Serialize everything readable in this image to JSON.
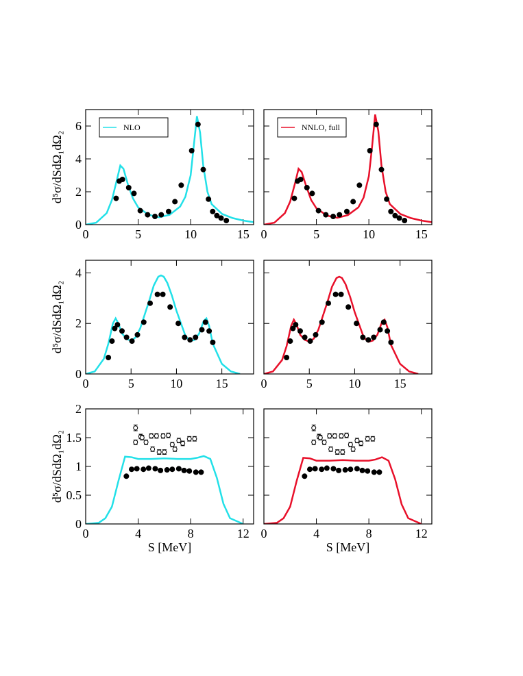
{
  "chart_data": [
    {
      "type": "line",
      "xlim": [
        0,
        16
      ],
      "xticks": [
        0,
        5,
        10,
        15
      ],
      "ylim": [
        0,
        7
      ],
      "yticks": [
        0,
        2,
        4,
        6
      ],
      "ylabel": "d⁵σ/dSdΩ₁dΩ₂",
      "show_ytick_labels": true,
      "legend": "upper left",
      "series": [
        {
          "name": "NLO",
          "color": "#22e0e8",
          "mode": "line",
          "x": [
            0,
            1,
            2,
            2.5,
            3,
            3.3,
            3.6,
            4,
            4.5,
            5,
            6,
            7,
            8,
            9,
            9.5,
            10,
            10.3,
            10.6,
            10.9,
            11.2,
            11.6,
            12,
            13,
            14,
            15,
            16
          ],
          "values": [
            0,
            0.12,
            0.7,
            1.5,
            2.8,
            3.6,
            3.4,
            2.5,
            1.6,
            1.05,
            0.6,
            0.45,
            0.6,
            1.1,
            1.7,
            3.0,
            4.8,
            6.6,
            5.6,
            3.6,
            2.0,
            1.25,
            0.65,
            0.4,
            0.25,
            0.15
          ]
        },
        {
          "color": "#000000",
          "mode": "filled",
          "x": [
            2.9,
            3.2,
            3.5,
            4.1,
            4.6,
            5.2,
            5.9,
            6.6,
            7.2,
            7.9,
            8.5,
            9.1,
            10.1,
            10.7,
            11.2,
            11.7,
            12.1,
            12.5,
            12.9,
            13.4
          ],
          "values": [
            1.6,
            2.65,
            2.75,
            2.25,
            1.9,
            0.85,
            0.6,
            0.5,
            0.6,
            0.8,
            1.4,
            2.4,
            4.5,
            6.1,
            3.35,
            1.55,
            0.8,
            0.55,
            0.4,
            0.25
          ]
        }
      ]
    },
    {
      "type": "line",
      "xlim": [
        0,
        16
      ],
      "xticks": [
        0,
        5,
        10,
        15
      ],
      "ylim": [
        0,
        7
      ],
      "yticks": [
        0,
        2,
        4,
        6
      ],
      "show_ytick_labels": false,
      "legend": "upper left",
      "series": [
        {
          "name": "NNLO, full",
          "color": "#e8102a",
          "mode": "line",
          "x": [
            0,
            1,
            2,
            2.5,
            3,
            3.3,
            3.6,
            4,
            4.5,
            5,
            6,
            7,
            8,
            9,
            9.5,
            10,
            10.3,
            10.6,
            10.9,
            11.2,
            11.6,
            12,
            13,
            14,
            15,
            16
          ],
          "values": [
            0,
            0.12,
            0.7,
            1.4,
            2.6,
            3.4,
            3.2,
            2.4,
            1.5,
            1.0,
            0.55,
            0.42,
            0.58,
            1.05,
            1.65,
            2.95,
            4.7,
            6.7,
            5.7,
            3.6,
            2.0,
            1.25,
            0.65,
            0.4,
            0.25,
            0.15
          ]
        },
        {
          "color": "#000000",
          "mode": "filled",
          "x": [
            2.9,
            3.2,
            3.5,
            4.1,
            4.6,
            5.2,
            5.9,
            6.6,
            7.2,
            7.9,
            8.5,
            9.1,
            10.1,
            10.7,
            11.2,
            11.7,
            12.1,
            12.5,
            12.9,
            13.4
          ],
          "values": [
            1.6,
            2.65,
            2.75,
            2.25,
            1.9,
            0.85,
            0.6,
            0.5,
            0.6,
            0.8,
            1.4,
            2.4,
            4.5,
            6.1,
            3.35,
            1.55,
            0.8,
            0.55,
            0.4,
            0.25
          ]
        }
      ]
    },
    {
      "type": "line",
      "xlim": [
        0,
        18.5
      ],
      "xticks": [
        0,
        5,
        10,
        15
      ],
      "ylim": [
        0,
        4.5
      ],
      "yticks": [
        0,
        2,
        4
      ],
      "ylabel": "d⁵σ/dSdΩ₁dΩ₂",
      "show_ytick_labels": true,
      "series": [
        {
          "color": "#22e0e8",
          "mode": "line",
          "x": [
            0,
            1,
            2,
            2.5,
            3,
            3.3,
            3.6,
            4,
            4.5,
            5,
            5.5,
            6,
            7,
            7.5,
            8,
            8.3,
            8.6,
            9,
            9.5,
            10,
            11,
            11.5,
            12,
            12.5,
            13,
            13.3,
            13.6,
            14,
            15,
            16,
            17
          ],
          "values": [
            0,
            0.1,
            0.6,
            1.2,
            2.0,
            2.2,
            2.0,
            1.6,
            1.4,
            1.3,
            1.45,
            1.8,
            2.9,
            3.5,
            3.85,
            3.9,
            3.85,
            3.6,
            3.1,
            2.5,
            1.5,
            1.3,
            1.35,
            1.6,
            2.1,
            2.2,
            1.9,
            1.2,
            0.4,
            0.1,
            0
          ]
        },
        {
          "color": "#000000",
          "mode": "filled",
          "x": [
            2.5,
            2.9,
            3.2,
            3.5,
            4.0,
            4.5,
            5.1,
            5.7,
            6.4,
            7.1,
            7.9,
            8.5,
            9.3,
            10.2,
            10.9,
            11.5,
            12.1,
            12.8,
            13.2,
            13.6,
            14.0
          ],
          "values": [
            0.65,
            1.3,
            1.8,
            1.95,
            1.7,
            1.45,
            1.3,
            1.55,
            2.05,
            2.8,
            3.15,
            3.15,
            2.65,
            2.0,
            1.45,
            1.35,
            1.45,
            1.75,
            2.05,
            1.7,
            1.25
          ]
        }
      ]
    },
    {
      "type": "line",
      "xlim": [
        0,
        18.5
      ],
      "xticks": [
        0,
        5,
        10,
        15
      ],
      "ylim": [
        0,
        4.5
      ],
      "yticks": [
        0,
        2,
        4
      ],
      "show_ytick_labels": false,
      "series": [
        {
          "color": "#e8102a",
          "mode": "line",
          "x": [
            0,
            1,
            2,
            2.5,
            3,
            3.3,
            3.6,
            4,
            4.5,
            5,
            5.5,
            6,
            7,
            7.5,
            8,
            8.3,
            8.6,
            9,
            9.5,
            10,
            11,
            11.5,
            12,
            12.5,
            13,
            13.3,
            13.6,
            14,
            15,
            16,
            17
          ],
          "values": [
            0,
            0.1,
            0.55,
            1.1,
            1.9,
            2.15,
            1.95,
            1.55,
            1.35,
            1.28,
            1.4,
            1.75,
            2.85,
            3.45,
            3.8,
            3.85,
            3.8,
            3.55,
            3.05,
            2.45,
            1.45,
            1.27,
            1.32,
            1.55,
            2.05,
            2.15,
            1.85,
            1.15,
            0.4,
            0.1,
            0
          ]
        },
        {
          "color": "#000000",
          "mode": "filled",
          "x": [
            2.5,
            2.9,
            3.2,
            3.5,
            4.0,
            4.5,
            5.1,
            5.7,
            6.4,
            7.1,
            7.9,
            8.5,
            9.3,
            10.2,
            10.9,
            11.5,
            12.1,
            12.8,
            13.2,
            13.6,
            14.0
          ],
          "values": [
            0.65,
            1.3,
            1.8,
            1.95,
            1.7,
            1.45,
            1.3,
            1.55,
            2.05,
            2.8,
            3.15,
            3.15,
            2.65,
            2.0,
            1.45,
            1.35,
            1.45,
            1.75,
            2.05,
            1.7,
            1.25
          ]
        }
      ]
    },
    {
      "type": "line",
      "xlim": [
        0,
        12.8
      ],
      "xticks": [
        0,
        4,
        8,
        12
      ],
      "ylim": [
        0,
        2
      ],
      "yticks": [
        0,
        0.5,
        1,
        1.5,
        2
      ],
      "ylabel": "d⁵σ/dSdΩ₁dΩ₂",
      "xlabel": "S [MeV]",
      "show_ytick_labels": true,
      "series": [
        {
          "color": "#22e0e8",
          "mode": "line",
          "x": [
            0,
            1,
            1.5,
            2,
            2.5,
            3,
            3.5,
            4,
            5,
            6,
            7,
            8,
            8.5,
            9,
            9.5,
            10,
            10.5,
            11,
            12
          ],
          "values": [
            0,
            0.02,
            0.1,
            0.3,
            0.75,
            1.17,
            1.16,
            1.13,
            1.13,
            1.14,
            1.13,
            1.13,
            1.15,
            1.18,
            1.13,
            0.8,
            0.35,
            0.1,
            0
          ]
        },
        {
          "color": "#000000",
          "mode": "filled",
          "x": [
            3.1,
            3.5,
            3.9,
            4.4,
            4.8,
            5.3,
            5.7,
            6.2,
            6.6,
            7.1,
            7.5,
            7.9,
            8.4,
            8.8
          ],
          "values": [
            0.83,
            0.95,
            0.96,
            0.95,
            0.97,
            0.96,
            0.93,
            0.94,
            0.95,
            0.96,
            0.93,
            0.92,
            0.9,
            0.9
          ]
        },
        {
          "color": "#000000",
          "mode": "open",
          "x": [
            3.8,
            3.8,
            4.2,
            4.3,
            4.6,
            5.0,
            5.1,
            5.4,
            5.6,
            5.9,
            6.0,
            6.3,
            6.6,
            6.8,
            7.1,
            7.4,
            7.9,
            8.3
          ],
          "values": [
            1.67,
            1.42,
            1.52,
            1.5,
            1.42,
            1.53,
            1.3,
            1.53,
            1.25,
            1.53,
            1.25,
            1.54,
            1.38,
            1.3,
            1.45,
            1.4,
            1.48,
            1.48
          ],
          "errors": [
            0.05,
            0.04,
            0.04,
            0.04,
            0.04,
            0.04,
            0.04,
            0.04,
            0.04,
            0.04,
            0.04,
            0.04,
            0.04,
            0.04,
            0.04,
            0.04,
            0.04,
            0.04
          ]
        }
      ]
    },
    {
      "type": "line",
      "xlim": [
        0,
        12.8
      ],
      "xticks": [
        0,
        4,
        8,
        12
      ],
      "ylim": [
        0,
        2
      ],
      "yticks": [
        0,
        0.5,
        1,
        1.5,
        2
      ],
      "xlabel": "S [MeV]",
      "show_ytick_labels": false,
      "series": [
        {
          "color": "#e8102a",
          "mode": "line",
          "x": [
            0,
            1,
            1.5,
            2,
            2.5,
            3,
            3.5,
            4,
            5,
            6,
            7,
            8,
            8.5,
            9,
            9.5,
            10,
            10.5,
            11,
            12
          ],
          "values": [
            0,
            0.02,
            0.1,
            0.3,
            0.75,
            1.15,
            1.14,
            1.1,
            1.1,
            1.11,
            1.1,
            1.1,
            1.12,
            1.16,
            1.1,
            0.78,
            0.34,
            0.1,
            0
          ]
        },
        {
          "color": "#000000",
          "mode": "filled",
          "x": [
            3.1,
            3.5,
            3.9,
            4.4,
            4.8,
            5.3,
            5.7,
            6.2,
            6.6,
            7.1,
            7.5,
            7.9,
            8.4,
            8.8
          ],
          "values": [
            0.83,
            0.95,
            0.96,
            0.95,
            0.97,
            0.96,
            0.93,
            0.94,
            0.95,
            0.96,
            0.93,
            0.92,
            0.9,
            0.9
          ]
        },
        {
          "color": "#000000",
          "mode": "open",
          "x": [
            3.8,
            3.8,
            4.2,
            4.3,
            4.6,
            5.0,
            5.1,
            5.4,
            5.6,
            5.9,
            6.0,
            6.3,
            6.6,
            6.8,
            7.1,
            7.4,
            7.9,
            8.3
          ],
          "values": [
            1.67,
            1.42,
            1.52,
            1.5,
            1.42,
            1.53,
            1.3,
            1.53,
            1.25,
            1.53,
            1.25,
            1.54,
            1.38,
            1.3,
            1.45,
            1.4,
            1.48,
            1.48
          ],
          "errors": [
            0.05,
            0.04,
            0.04,
            0.04,
            0.04,
            0.04,
            0.04,
            0.04,
            0.04,
            0.04,
            0.04,
            0.04,
            0.04,
            0.04,
            0.04,
            0.04,
            0.04,
            0.04
          ]
        }
      ]
    }
  ]
}
